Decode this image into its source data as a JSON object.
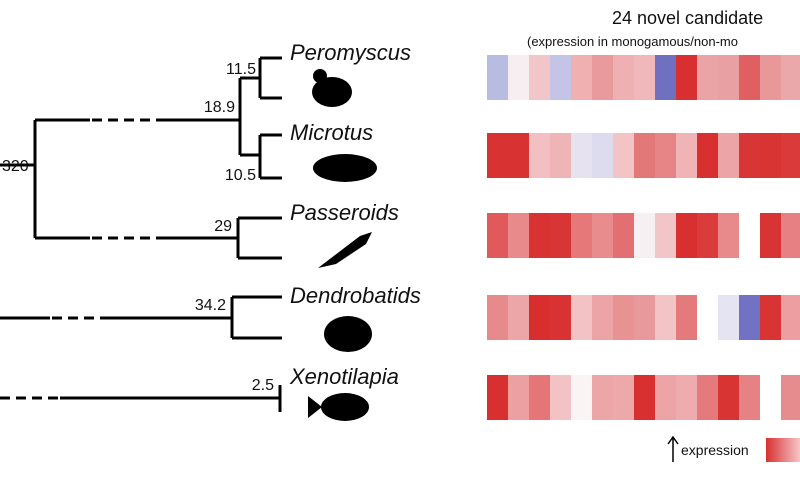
{
  "tree": {
    "root_label": "320",
    "node_labels": [
      "11.5",
      "18.9",
      "10.5",
      "29",
      "34.2",
      "2.5"
    ],
    "species": [
      "Peromyscus",
      "Microtus",
      "Passeroids",
      "Dendrobatids",
      "Xenotilapia"
    ]
  },
  "heatmap": {
    "title": "24 novel candidate",
    "subtitle": "(expression in monogamous/non-mo",
    "legend_label": "expression",
    "rows": [
      {
        "cells": [
          "#b8bce0",
          "#f6eef0",
          "#f2c6c8",
          "#c4c4e6",
          "#f0b0b2",
          "#e89a9c",
          "#eeb0b2",
          "#f0b8ba",
          "#7070c0",
          "#d83030",
          "#eba4a6",
          "#e8a0a2",
          "#e06062",
          "#e89898",
          "#eaa8aa"
        ]
      },
      {
        "cells": [
          "#d83232",
          "#d83232",
          "#f2c0c2",
          "#eeb4b6",
          "#e6e2f0",
          "#dcdcee",
          "#f2c4c6",
          "#e27878",
          "#e68486",
          "#f0b4b6",
          "#d83030",
          "#eca4a6",
          "#d83636",
          "#d83434",
          "#da3a3a"
        ]
      },
      {
        "cells": [
          "#e05a5c",
          "#e88a8c",
          "#d83232",
          "#d83636",
          "#e6787a",
          "#e88c8e",
          "#e27072",
          "#f6f0f2",
          "#f2c6c8",
          "#d83030",
          "#da3c3c",
          "#e88a8c",
          "#ffffff",
          "#d83434",
          "#e68082"
        ]
      },
      {
        "cells": [
          "#e68a8c",
          "#eca6a8",
          "#d82e2e",
          "#d83232",
          "#f2c2c4",
          "#eca4a6",
          "#e89294",
          "#e8999b",
          "#f2c4c6",
          "#e47a7c",
          "#ffffff",
          "#e4e4f2",
          "#7272c4",
          "#d83434",
          "#ec9ea0"
        ]
      },
      {
        "cells": [
          "#d83030",
          "#eca0a2",
          "#e47678",
          "#f2c2c4",
          "#faf4f4",
          "#eca6a8",
          "#eda8aa",
          "#d83030",
          "#eca4a6",
          "#eeacae",
          "#e47a7c",
          "#d83434",
          "#e68284",
          "#ffffff",
          "#e68c8e"
        ]
      }
    ]
  }
}
